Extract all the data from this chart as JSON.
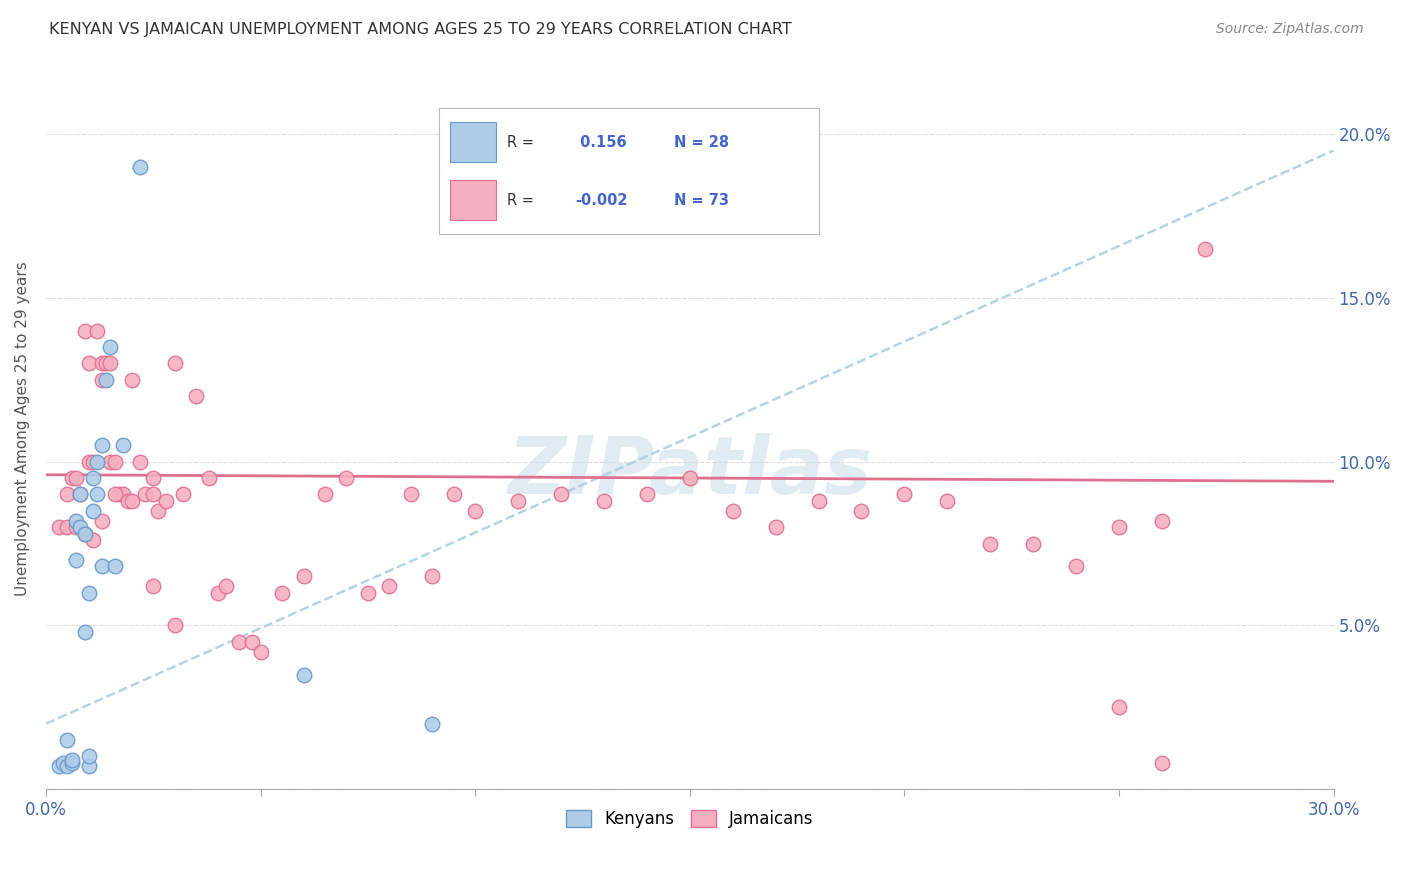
{
  "title": "KENYAN VS JAMAICAN UNEMPLOYMENT AMONG AGES 25 TO 29 YEARS CORRELATION CHART",
  "source": "Source: ZipAtlas.com",
  "ylabel": "Unemployment Among Ages 25 to 29 years",
  "xlim": [
    0.0,
    0.3
  ],
  "ylim": [
    0.0,
    0.22
  ],
  "legend_r_kenya": " 0.156",
  "legend_n_kenya": "28",
  "legend_r_jamaica": "-0.002",
  "legend_n_jamaica": "73",
  "kenya_color": "#aecce8",
  "jamaica_color": "#f5afc0",
  "kenya_edge_color": "#6699cc",
  "jamaica_edge_color": "#e07090",
  "kenya_trend_color": "#aaccdd",
  "jamaica_trend_color": "#e07090",
  "background_color": "#ffffff",
  "grid_color": "#dddddd",
  "kenya_x": [
    0.003,
    0.004,
    0.005,
    0.005,
    0.006,
    0.006,
    0.007,
    0.007,
    0.008,
    0.008,
    0.009,
    0.009,
    0.01,
    0.01,
    0.01,
    0.011,
    0.011,
    0.012,
    0.012,
    0.013,
    0.013,
    0.014,
    0.015,
    0.016,
    0.018,
    0.022,
    0.06,
    0.09
  ],
  "kenya_y": [
    0.007,
    0.008,
    0.007,
    0.015,
    0.008,
    0.009,
    0.07,
    0.082,
    0.08,
    0.09,
    0.048,
    0.078,
    0.007,
    0.01,
    0.06,
    0.085,
    0.095,
    0.09,
    0.1,
    0.068,
    0.105,
    0.125,
    0.135,
    0.068,
    0.105,
    0.19,
    0.035,
    0.02
  ],
  "jamaica_x": [
    0.003,
    0.005,
    0.006,
    0.007,
    0.008,
    0.009,
    0.01,
    0.01,
    0.011,
    0.012,
    0.013,
    0.013,
    0.014,
    0.015,
    0.015,
    0.016,
    0.017,
    0.018,
    0.019,
    0.02,
    0.022,
    0.023,
    0.025,
    0.025,
    0.026,
    0.028,
    0.03,
    0.032,
    0.035,
    0.038,
    0.04,
    0.042,
    0.045,
    0.048,
    0.05,
    0.055,
    0.06,
    0.065,
    0.07,
    0.075,
    0.08,
    0.085,
    0.09,
    0.095,
    0.1,
    0.11,
    0.12,
    0.13,
    0.14,
    0.15,
    0.16,
    0.17,
    0.18,
    0.19,
    0.2,
    0.21,
    0.22,
    0.23,
    0.24,
    0.25,
    0.26,
    0.27,
    0.005,
    0.007,
    0.009,
    0.011,
    0.013,
    0.016,
    0.02,
    0.025,
    0.03,
    0.25,
    0.26
  ],
  "jamaica_y": [
    0.08,
    0.09,
    0.095,
    0.095,
    0.09,
    0.14,
    0.13,
    0.1,
    0.1,
    0.14,
    0.125,
    0.13,
    0.13,
    0.13,
    0.1,
    0.1,
    0.09,
    0.09,
    0.088,
    0.125,
    0.1,
    0.09,
    0.09,
    0.095,
    0.085,
    0.088,
    0.13,
    0.09,
    0.12,
    0.095,
    0.06,
    0.062,
    0.045,
    0.045,
    0.042,
    0.06,
    0.065,
    0.09,
    0.095,
    0.06,
    0.062,
    0.09,
    0.065,
    0.09,
    0.085,
    0.088,
    0.09,
    0.088,
    0.09,
    0.095,
    0.085,
    0.08,
    0.088,
    0.085,
    0.09,
    0.088,
    0.075,
    0.075,
    0.068,
    0.08,
    0.082,
    0.165,
    0.08,
    0.08,
    0.078,
    0.076,
    0.082,
    0.09,
    0.088,
    0.062,
    0.05,
    0.025,
    0.008
  ],
  "watermark": "ZIPatlas",
  "legend_text_color": "#4466cc"
}
